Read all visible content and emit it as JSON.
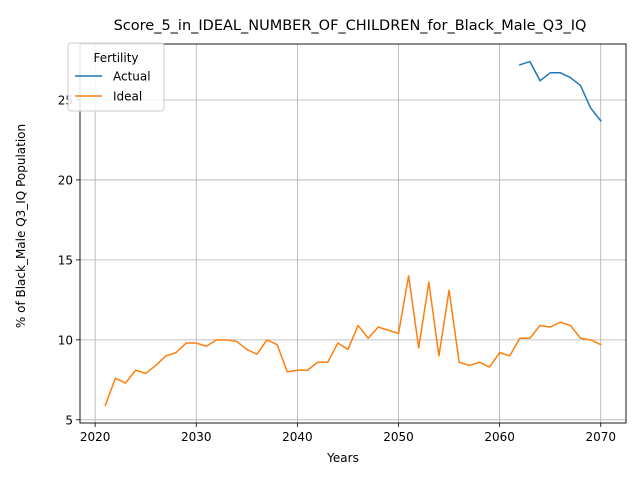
{
  "chart_data": {
    "type": "line",
    "title": "Score_5_in_IDEAL_NUMBER_OF_CHILDREN_for_Black_Male_Q3_IQ",
    "xlabel": "Years",
    "ylabel": "% of Black_Male Q3_IQ Population",
    "xlim": [
      2018.5,
      2072.5
    ],
    "ylim": [
      4.8,
      28.5
    ],
    "xticks": [
      2020,
      2030,
      2040,
      2050,
      2060,
      2070
    ],
    "yticks": [
      5,
      10,
      15,
      20,
      25
    ],
    "grid": true,
    "legend": {
      "title": "Fertility",
      "placement": "top-left"
    },
    "series": [
      {
        "name": "Actual",
        "color": "#1f77b4",
        "x": [
          2062,
          2063,
          2064,
          2065,
          2066,
          2067,
          2068,
          2069,
          2070
        ],
        "y": [
          27.2,
          27.4,
          26.2,
          26.7,
          26.7,
          26.4,
          25.9,
          24.5,
          23.7
        ]
      },
      {
        "name": "Ideal",
        "color": "#ff7f0e",
        "x": [
          2021,
          2022,
          2023,
          2024,
          2025,
          2026,
          2027,
          2028,
          2029,
          2030,
          2031,
          2032,
          2033,
          2034,
          2035,
          2036,
          2037,
          2038,
          2039,
          2040,
          2041,
          2042,
          2043,
          2044,
          2045,
          2046,
          2047,
          2048,
          2049,
          2050,
          2051,
          2052,
          2053,
          2054,
          2055,
          2056,
          2057,
          2058,
          2059,
          2060,
          2061,
          2062,
          2063,
          2064,
          2065,
          2066,
          2067,
          2068,
          2069,
          2070
        ],
        "y": [
          5.9,
          7.6,
          7.3,
          8.1,
          7.9,
          8.4,
          9.0,
          9.2,
          9.8,
          9.8,
          9.6,
          10.0,
          10.0,
          9.9,
          9.4,
          9.1,
          10.0,
          9.7,
          8.0,
          8.1,
          8.1,
          8.6,
          8.6,
          9.8,
          9.4,
          10.9,
          10.1,
          10.8,
          10.6,
          10.4,
          14.0,
          9.5,
          13.6,
          9.0,
          13.1,
          8.6,
          8.4,
          8.6,
          8.3,
          9.2,
          9.0,
          10.1,
          10.1,
          10.9,
          10.8,
          11.1,
          10.9,
          10.1,
          10.0,
          9.7
        ]
      }
    ]
  }
}
